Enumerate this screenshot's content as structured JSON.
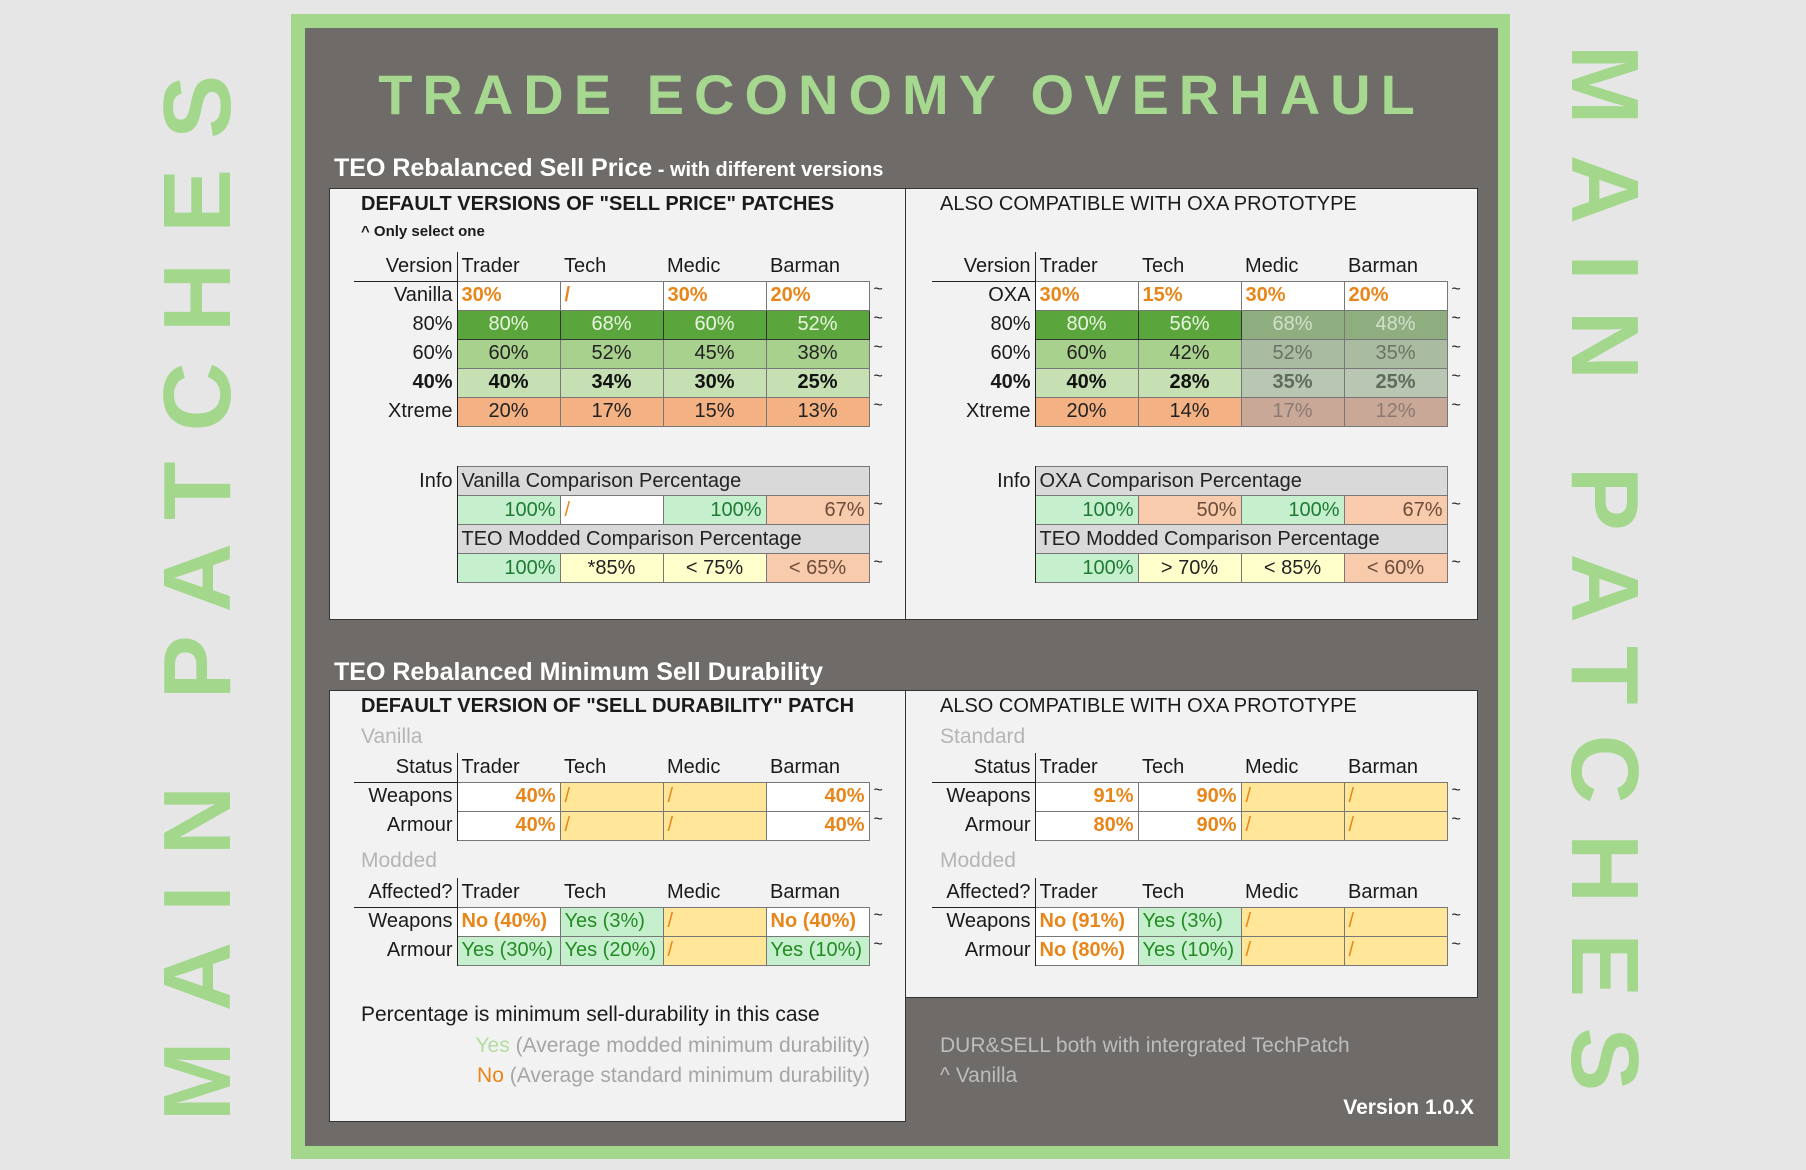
{
  "side_text": "MAIN PATCHES",
  "title": "TRADE ECONOMY OVERHAUL",
  "tilde": "~",
  "colors": {
    "accent_green": "#a3d78c",
    "frame_gray": "#6e6b69",
    "orange": "#e8861a"
  },
  "sell_price": {
    "heading": "TEO Rebalanced Sell Price",
    "heading_sub": " - with different versions",
    "left": {
      "title": "DEFAULT VERSIONS OF \"SELL PRICE\" PATCHES",
      "note": "^ Only select one",
      "table": {
        "corner": "Version",
        "columns": [
          "Trader",
          "Tech",
          "Medic",
          "Barman"
        ],
        "rows": [
          {
            "label": "Vanilla",
            "bold": false,
            "cells": [
              {
                "t": "30%",
                "s": "w-o"
              },
              {
                "t": "/",
                "s": "w-o"
              },
              {
                "t": "30%",
                "s": "w-o"
              },
              {
                "t": "20%",
                "s": "w-o"
              }
            ]
          },
          {
            "label": "80%",
            "bold": false,
            "cells": [
              {
                "t": "80%",
                "s": "g1"
              },
              {
                "t": "68%",
                "s": "g1"
              },
              {
                "t": "60%",
                "s": "g1"
              },
              {
                "t": "52%",
                "s": "g1"
              }
            ]
          },
          {
            "label": "60%",
            "bold": false,
            "cells": [
              {
                "t": "60%",
                "s": "g2"
              },
              {
                "t": "52%",
                "s": "g2"
              },
              {
                "t": "45%",
                "s": "g2"
              },
              {
                "t": "38%",
                "s": "g2"
              }
            ]
          },
          {
            "label": "40%",
            "bold": true,
            "cells": [
              {
                "t": "40%",
                "s": "g3"
              },
              {
                "t": "34%",
                "s": "g3"
              },
              {
                "t": "30%",
                "s": "g3"
              },
              {
                "t": "25%",
                "s": "g3"
              }
            ]
          },
          {
            "label": "Xtreme",
            "bold": false,
            "cells": [
              {
                "t": "20%",
                "s": "x"
              },
              {
                "t": "17%",
                "s": "x"
              },
              {
                "t": "15%",
                "s": "x"
              },
              {
                "t": "13%",
                "s": "x"
              }
            ]
          }
        ]
      },
      "info": {
        "label": "Info",
        "compare_title": "Vanilla Comparison Percentage",
        "compare_cells": [
          {
            "t": "100%",
            "s": "lg"
          },
          {
            "t": "/",
            "s": "ws"
          },
          {
            "t": "100%",
            "s": "lg"
          },
          {
            "t": "67%",
            "s": "pe"
          }
        ],
        "modded_title": "TEO Modded Comparison Percentage",
        "modded_cells": [
          {
            "t": "100%",
            "s": "lg"
          },
          {
            "t": "*85%",
            "s": "ly"
          },
          {
            "t": "< 75%",
            "s": "ly"
          },
          {
            "t": "< 65%",
            "s": "pec"
          }
        ]
      }
    },
    "right": {
      "title": "ALSO COMPATIBLE WITH OXA PROTOTYPE",
      "table": {
        "corner": "Version",
        "columns": [
          "Trader",
          "Tech",
          "Medic",
          "Barman"
        ],
        "rows": [
          {
            "label": "OXA",
            "bold": false,
            "cells": [
              {
                "t": "30%",
                "s": "w-o"
              },
              {
                "t": "15%",
                "s": "w-o"
              },
              {
                "t": "30%",
                "s": "w-o"
              },
              {
                "t": "20%",
                "s": "w-o"
              }
            ]
          },
          {
            "label": "80%",
            "bold": false,
            "cells": [
              {
                "t": "80%",
                "s": "g1"
              },
              {
                "t": "56%",
                "s": "g1"
              },
              {
                "t": "68%",
                "s": "g1d"
              },
              {
                "t": "48%",
                "s": "g1d"
              }
            ]
          },
          {
            "label": "60%",
            "bold": false,
            "cells": [
              {
                "t": "60%",
                "s": "g2"
              },
              {
                "t": "42%",
                "s": "g2"
              },
              {
                "t": "52%",
                "s": "g2d"
              },
              {
                "t": "35%",
                "s": "g2d"
              }
            ]
          },
          {
            "label": "40%",
            "bold": true,
            "cells": [
              {
                "t": "40%",
                "s": "g3"
              },
              {
                "t": "28%",
                "s": "g3"
              },
              {
                "t": "35%",
                "s": "g3d"
              },
              {
                "t": "25%",
                "s": "g3d"
              }
            ]
          },
          {
            "label": "Xtreme",
            "bold": false,
            "cells": [
              {
                "t": "20%",
                "s": "x"
              },
              {
                "t": "14%",
                "s": "x"
              },
              {
                "t": "17%",
                "s": "xd"
              },
              {
                "t": "12%",
                "s": "xd"
              }
            ]
          }
        ]
      },
      "info": {
        "label": "Info",
        "compare_title": "OXA Comparison Percentage",
        "compare_cells": [
          {
            "t": "100%",
            "s": "lg"
          },
          {
            "t": "50%",
            "s": "pe"
          },
          {
            "t": "100%",
            "s": "lg"
          },
          {
            "t": "67%",
            "s": "pe"
          }
        ],
        "modded_title": "TEO Modded Comparison Percentage",
        "modded_cells": [
          {
            "t": "100%",
            "s": "lg"
          },
          {
            "t": "> 70%",
            "s": "ly"
          },
          {
            "t": "< 85%",
            "s": "ly"
          },
          {
            "t": "< 60%",
            "s": "pec"
          }
        ]
      }
    }
  },
  "durability": {
    "heading": "TEO Rebalanced Minimum Sell Durability",
    "left": {
      "title": "DEFAULT VERSION OF \"SELL DURABILITY\" PATCH",
      "base_label": "Vanilla",
      "base_table": {
        "corner": "Status",
        "columns": [
          "Trader",
          "Tech",
          "Medic",
          "Barman"
        ],
        "rows": [
          {
            "label": "Weapons",
            "bold": false,
            "cells": [
              {
                "t": "40%",
                "s": "w-or"
              },
              {
                "t": "/",
                "s": "yel"
              },
              {
                "t": "/",
                "s": "yel"
              },
              {
                "t": "40%",
                "s": "w-or"
              }
            ]
          },
          {
            "label": "Armour",
            "bold": false,
            "cells": [
              {
                "t": "40%",
                "s": "w-or"
              },
              {
                "t": "/",
                "s": "yel"
              },
              {
                "t": "/",
                "s": "yel"
              },
              {
                "t": "40%",
                "s": "w-or"
              }
            ]
          }
        ]
      },
      "modded_label": "Modded",
      "modded_table": {
        "corner": "Affected?",
        "columns": [
          "Trader",
          "Tech",
          "Medic",
          "Barman"
        ],
        "rows": [
          {
            "label": "Weapons",
            "bold": false,
            "cells": [
              {
                "t": "No (40%)",
                "s": "no"
              },
              {
                "t": "Yes (3%)",
                "s": "yes"
              },
              {
                "t": "/",
                "s": "yel"
              },
              {
                "t": "No (40%)",
                "s": "no"
              }
            ]
          },
          {
            "label": "Armour",
            "bold": false,
            "cells": [
              {
                "t": "Yes (30%)",
                "s": "yes"
              },
              {
                "t": "Yes (20%)",
                "s": "yes"
              },
              {
                "t": "/",
                "s": "yel"
              },
              {
                "t": "Yes (10%)",
                "s": "yes"
              }
            ]
          }
        ]
      },
      "note": "Percentage is minimum sell-durability in this case",
      "legend_yes_word": "Yes",
      "legend_yes_text": " (Average modded minimum durability)",
      "legend_no_word": "No",
      "legend_no_text": " (Average standard minimum durability)"
    },
    "right": {
      "title": "ALSO COMPATIBLE WITH OXA PROTOTYPE",
      "base_label": "Standard",
      "base_table": {
        "corner": "Status",
        "columns": [
          "Trader",
          "Tech",
          "Medic",
          "Barman"
        ],
        "rows": [
          {
            "label": "Weapons",
            "bold": false,
            "cells": [
              {
                "t": "91%",
                "s": "w-or"
              },
              {
                "t": "90%",
                "s": "w-or"
              },
              {
                "t": "/",
                "s": "yel"
              },
              {
                "t": "/",
                "s": "yel"
              }
            ]
          },
          {
            "label": "Armour",
            "bold": false,
            "cells": [
              {
                "t": "80%",
                "s": "w-or"
              },
              {
                "t": "90%",
                "s": "w-or"
              },
              {
                "t": "/",
                "s": "yel"
              },
              {
                "t": "/",
                "s": "yel"
              }
            ]
          }
        ]
      },
      "modded_label": "Modded",
      "modded_table": {
        "corner": "Affected?",
        "columns": [
          "Trader",
          "Tech",
          "Medic",
          "Barman"
        ],
        "rows": [
          {
            "label": "Weapons",
            "bold": false,
            "cells": [
              {
                "t": "No (91%)",
                "s": "no"
              },
              {
                "t": "Yes (3%)",
                "s": "yes"
              },
              {
                "t": "/",
                "s": "yel"
              },
              {
                "t": "/",
                "s": "yel"
              }
            ]
          },
          {
            "label": "Armour",
            "bold": false,
            "cells": [
              {
                "t": "No (80%)",
                "s": "no"
              },
              {
                "t": "Yes (10%)",
                "s": "yes"
              },
              {
                "t": "/",
                "s": "yel"
              },
              {
                "t": "/",
                "s": "yel"
              }
            ]
          }
        ]
      }
    },
    "footer_line1": "DUR&SELL both with intergrated TechPatch",
    "footer_line2": "^ Vanilla",
    "version": "Version 1.0.X"
  }
}
